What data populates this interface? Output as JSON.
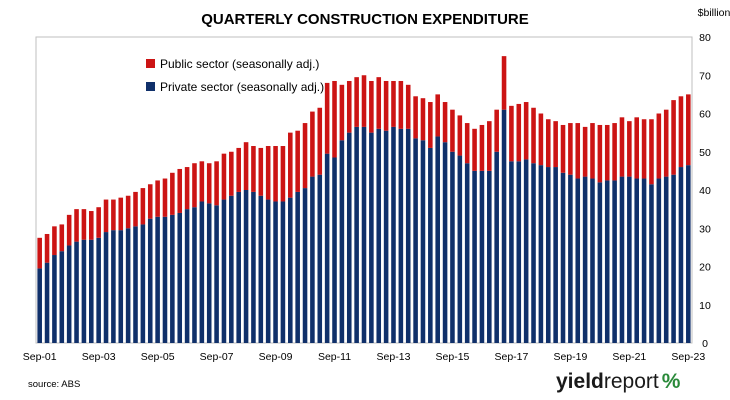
{
  "chart_data": {
    "type": "bar",
    "stacked": true,
    "title": "QUARTERLY CONSTRUCTION EXPENDITURE",
    "ylabel": "$billion",
    "ylim": [
      0,
      80
    ],
    "yticks": [
      0,
      10,
      20,
      30,
      40,
      50,
      60,
      70,
      80
    ],
    "y_axis_side": "right",
    "grid": false,
    "legend_position": "top-left",
    "x_tick_labels": [
      "Sep-01",
      "Sep-03",
      "Sep-05",
      "Sep-07",
      "Sep-09",
      "Sep-11",
      "Sep-13",
      "Sep-15",
      "Sep-17",
      "Sep-19",
      "Sep-21",
      "Sep-23"
    ],
    "categories": [
      "Sep-01",
      "Dec-01",
      "Mar-02",
      "Jun-02",
      "Sep-02",
      "Dec-02",
      "Mar-03",
      "Jun-03",
      "Sep-03",
      "Dec-03",
      "Mar-04",
      "Jun-04",
      "Sep-04",
      "Dec-04",
      "Mar-05",
      "Jun-05",
      "Sep-05",
      "Dec-05",
      "Mar-06",
      "Jun-06",
      "Sep-06",
      "Dec-06",
      "Mar-07",
      "Jun-07",
      "Sep-07",
      "Dec-07",
      "Mar-08",
      "Jun-08",
      "Sep-08",
      "Dec-08",
      "Mar-09",
      "Jun-09",
      "Sep-09",
      "Dec-09",
      "Mar-10",
      "Jun-10",
      "Sep-10",
      "Dec-10",
      "Mar-11",
      "Jun-11",
      "Sep-11",
      "Dec-11",
      "Mar-12",
      "Jun-12",
      "Sep-12",
      "Dec-12",
      "Mar-13",
      "Jun-13",
      "Sep-13",
      "Dec-13",
      "Mar-14",
      "Jun-14",
      "Sep-14",
      "Dec-14",
      "Mar-15",
      "Jun-15",
      "Sep-15",
      "Dec-15",
      "Mar-16",
      "Jun-16",
      "Sep-16",
      "Dec-16",
      "Mar-17",
      "Jun-17",
      "Sep-17",
      "Dec-17",
      "Mar-18",
      "Jun-18",
      "Sep-18",
      "Dec-18",
      "Mar-19",
      "Jun-19",
      "Sep-19",
      "Dec-19",
      "Mar-20",
      "Jun-20",
      "Sep-20",
      "Dec-20",
      "Mar-21",
      "Jun-21",
      "Sep-21",
      "Dec-21",
      "Mar-22",
      "Jun-22",
      "Sep-22",
      "Dec-22",
      "Mar-23",
      "Jun-23",
      "Sep-23"
    ],
    "series": [
      {
        "name": "Private sector (seasonally adj.)",
        "color": "#10306a",
        "values": [
          19.5,
          21,
          23,
          24,
          25.5,
          26.5,
          27,
          27,
          27.5,
          29,
          29.5,
          29.5,
          30,
          30.5,
          31,
          32.5,
          33,
          33,
          33.5,
          34,
          35,
          35.5,
          37,
          36.5,
          36,
          37.5,
          38.5,
          39.5,
          40,
          39.5,
          38.5,
          37.5,
          37,
          37,
          38,
          39.5,
          40.5,
          43.5,
          44,
          49.5,
          48.5,
          53,
          55,
          56.5,
          56.5,
          55,
          56,
          55.5,
          56.5,
          56,
          56,
          53.5,
          53,
          51,
          54,
          52.5,
          50,
          49,
          47,
          45,
          45,
          45,
          50,
          61,
          47.5,
          47.5,
          48,
          47,
          46.5,
          46,
          46,
          44.5,
          44,
          43,
          43.5,
          43,
          42,
          42.5,
          42.5,
          43.5,
          43.5,
          43,
          43,
          41.5,
          43,
          43.5,
          44,
          46,
          46.5
        ]
      },
      {
        "name": "Public sector (seasonally adj.)",
        "color": "#cc1414",
        "values": [
          8,
          7.5,
          7.5,
          7,
          8,
          8.5,
          8,
          7.5,
          8,
          8.5,
          8,
          8.5,
          8.5,
          9,
          9.5,
          9,
          9.5,
          10,
          11,
          11.5,
          11,
          11.5,
          10.5,
          10.5,
          11.5,
          12,
          11.5,
          11.5,
          12.5,
          12,
          12.5,
          14,
          14.5,
          14.5,
          17,
          16,
          17,
          17,
          17.5,
          18.5,
          20,
          14.5,
          13.5,
          13,
          13.5,
          13.5,
          13.5,
          13,
          12,
          12.5,
          11.5,
          11,
          11,
          12,
          11,
          10.5,
          11,
          10.5,
          10.5,
          11,
          12,
          13,
          11,
          14,
          14.5,
          15,
          15,
          14.5,
          13.5,
          12.5,
          12,
          12.5,
          13.5,
          14.5,
          13,
          14.5,
          15,
          14.5,
          15,
          15.5,
          14.5,
          16,
          15.5,
          17,
          17,
          17.5,
          19.5,
          18.5,
          18.5
        ]
      }
    ]
  },
  "source_note": "source: ABS",
  "logo": {
    "word_a": "yield",
    "word_b": "report",
    "symbol": "%"
  }
}
